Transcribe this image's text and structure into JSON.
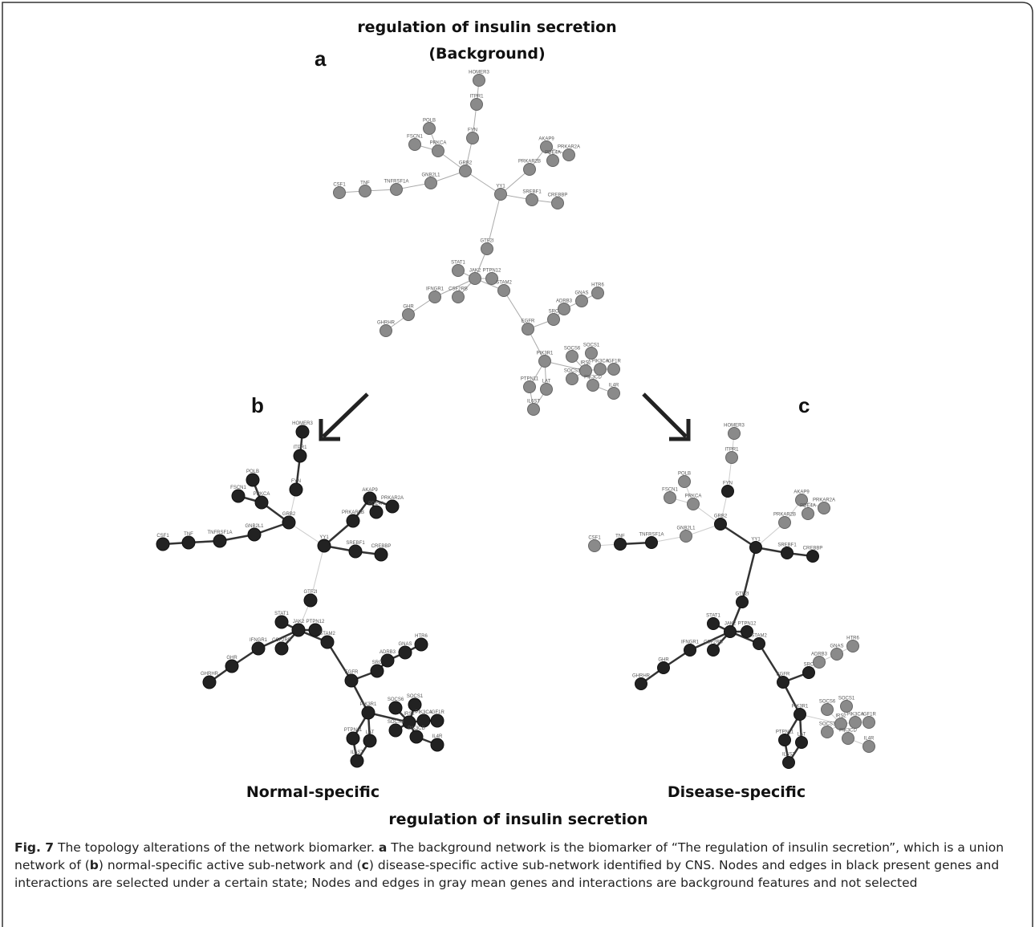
{
  "figure": {
    "title": "regulation of insulin secretion",
    "subtitle": "(Background)",
    "panel_labels": [
      "a",
      "b",
      "c"
    ],
    "panel_titles": [
      "Normal-specific",
      "Disease-specific"
    ],
    "bottom_title": "regulation of insulin secretion"
  },
  "nodes": [
    "HOMER3",
    "ITPR1",
    "FYN",
    "POLB",
    "FSCN1",
    "PRKCA",
    "GRB2",
    "GNB2L1",
    "TNFRSF1A",
    "TNF",
    "CSF1",
    "AKAP9",
    "PRKAR2A",
    "PDE4A",
    "PRKAR2B",
    "YY1",
    "SREBF1",
    "CREBBP",
    "GTF2I",
    "STAT1",
    "JAK2",
    "PTPN12",
    "IFNGR1",
    "CSF2RB",
    "GHR",
    "GHRHR",
    "STAM2",
    "EGFR",
    "ADRB3",
    "GNAS",
    "HTR6",
    "SRC",
    "PIK3R1",
    "SOCS1",
    "SOCS6",
    "IRS2",
    "PIK3CA",
    "IGF1R",
    "SOCS3",
    "PIK3CD",
    "IL4R",
    "PTPN11",
    "LAT",
    "IL6ST"
  ],
  "caption": [
    "Fig. 7",
    " The topology alterations of the network biomarker. ",
    "a",
    " The background network is the biomarker of “The regulation of insulin secretion”, which is a union network of (",
    "b",
    ") normal-specific active sub-network and (",
    "c",
    ") disease-specific active sub-network identified by CNS. Nodes and edges in black present genes and interactions are selected under a certain state; Nodes and edges in gray mean genes and interactions are background features and not selected"
  ]
}
